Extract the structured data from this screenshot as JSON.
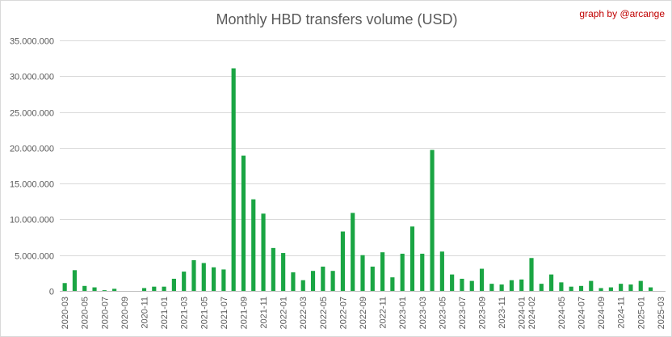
{
  "chart_data": {
    "type": "bar",
    "title": "Monthly HBD transfers volume (USD)",
    "credit": "graph by @arcange",
    "xlabel": "",
    "ylabel": "",
    "ylim": [
      0,
      35000000
    ],
    "yticks": [
      0,
      5000000,
      10000000,
      15000000,
      20000000,
      25000000,
      30000000,
      35000000
    ],
    "ytick_labels": [
      "0",
      "5.000.000",
      "10.000.000",
      "15.000.000",
      "20.000.000",
      "25.000.000",
      "30.000.000",
      "35.000.000"
    ],
    "grid": true,
    "legend": "none",
    "bar_color": "#1aa543",
    "categories": [
      "2020-03",
      "2020-04",
      "2020-05",
      "2020-06",
      "2020-07",
      "2020-08",
      "2020-09",
      "2020-10",
      "2020-11",
      "2020-12",
      "2021-01",
      "2021-02",
      "2021-03",
      "2021-04",
      "2021-05",
      "2021-06",
      "2021-07",
      "2021-08",
      "2021-09",
      "2021-10",
      "2021-11",
      "2021-12",
      "2022-01",
      "2022-02",
      "2022-03",
      "2022-04",
      "2022-05",
      "2022-06",
      "2022-07",
      "2022-08",
      "2022-09",
      "2022-10",
      "2022-11",
      "2022-12",
      "2023-01",
      "2023-02",
      "2023-03",
      "2023-04",
      "2023-05",
      "2023-06",
      "2023-07",
      "2023-08",
      "2023-09",
      "2023-10",
      "2023-11",
      "2023-12",
      "2024-01",
      "2024-02",
      "2024-03",
      "2024-04",
      "2024-05",
      "2024-06",
      "2024-07",
      "2024-08",
      "2024-09",
      "2024-10",
      "2024-11",
      "2024-12",
      "2025-01",
      "2025-02",
      "2025-03"
    ],
    "tick_labels": [
      "2020-03",
      "2020-05",
      "2020-07",
      "2020-09",
      "2020-11",
      "2021-01",
      "2021-03",
      "2021-05",
      "2021-07",
      "2021-09",
      "2021-11",
      "2022-01",
      "2022-03",
      "2022-05",
      "2022-07",
      "2022-09",
      "2022-11",
      "2023-01",
      "2023-03",
      "2023-05",
      "2023-07",
      "2023-09",
      "2023-11",
      "2024-01",
      "2024-02",
      "2024-05",
      "2024-07",
      "2024-09",
      "2024-11",
      "2025-01",
      "2025-03"
    ],
    "values": [
      1100000,
      2900000,
      700000,
      500000,
      100000,
      300000,
      0,
      0,
      400000,
      600000,
      600000,
      1700000,
      2700000,
      4300000,
      3900000,
      3300000,
      3000000,
      31100000,
      18900000,
      12800000,
      10800000,
      6000000,
      5300000,
      2600000,
      1500000,
      2800000,
      3400000,
      2800000,
      8300000,
      10900000,
      5000000,
      3400000,
      5400000,
      1900000,
      5200000,
      9000000,
      5200000,
      19700000,
      5500000,
      2300000,
      1700000,
      1400000,
      3100000,
      1000000,
      900000,
      1500000,
      1600000,
      4600000,
      1000000,
      2300000,
      1200000,
      600000,
      700000,
      1400000,
      400000,
      500000,
      1000000,
      900000,
      1400000,
      500000,
      0
    ]
  }
}
